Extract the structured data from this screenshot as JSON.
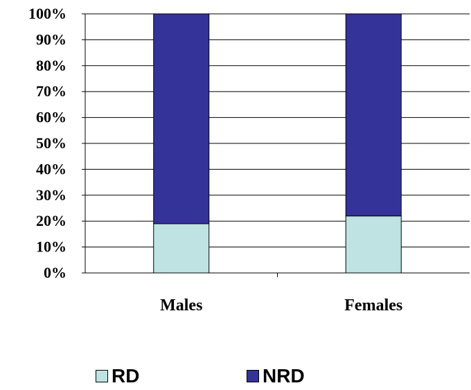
{
  "chart_data": {
    "type": "bar",
    "stacked": true,
    "categories": [
      "Males",
      "Females"
    ],
    "series": [
      {
        "name": "RD",
        "values": [
          19,
          22
        ],
        "color": "#bfe3e3"
      },
      {
        "name": "NRD",
        "values": [
          81,
          78
        ],
        "color": "#333399"
      }
    ],
    "ylim": [
      0,
      100
    ],
    "yticks": [
      "0%",
      "10%",
      "20%",
      "30%",
      "40%",
      "50%",
      "60%",
      "70%",
      "80%",
      "90%",
      "100%"
    ],
    "grid": true,
    "legend_position": "bottom"
  }
}
